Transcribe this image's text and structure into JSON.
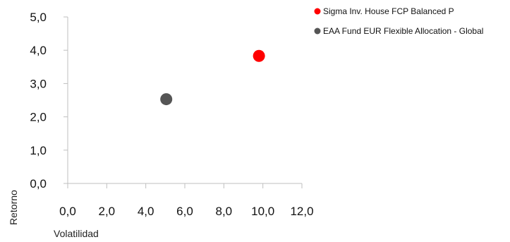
{
  "chart_data": {
    "type": "scatter",
    "xlabel": "Volatilidad",
    "ylabel": "Retorno",
    "xlim": [
      0,
      12
    ],
    "ylim": [
      0,
      5
    ],
    "x_ticks": [
      "0,0",
      "2,0",
      "4,0",
      "6,0",
      "8,0",
      "10,0",
      "12,0"
    ],
    "y_ticks": [
      "0,0",
      "1,0",
      "2,0",
      "3,0",
      "4,0",
      "5,0"
    ],
    "grid": false,
    "legend_position": "top-right",
    "series": [
      {
        "name": "Sigma Inv. House FCP Balanced P",
        "color": "#ff0000",
        "x": 9.8,
        "y": 3.83
      },
      {
        "name": "EAA Fund EUR Flexible Allocation - Global",
        "color": "#555555",
        "x": 5.05,
        "y": 2.53
      }
    ]
  }
}
